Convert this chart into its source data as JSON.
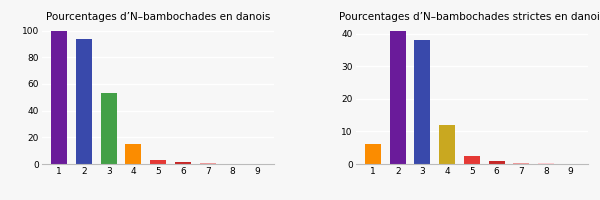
{
  "left": {
    "title": "Pourcentages d’N–bambochades en danois",
    "values": [
      100,
      94,
      53,
      15,
      3,
      1.5,
      0.5,
      0.3,
      0.15
    ],
    "colors": [
      "#6a1b9a",
      "#3949ab",
      "#43a047",
      "#fb8c00",
      "#e53935",
      "#c62828",
      "#ef9a9a",
      "#ffcdd2",
      "#ffebee"
    ],
    "ylim": [
      0,
      105
    ],
    "yticks": [
      0,
      20,
      40,
      60,
      80,
      100
    ]
  },
  "right": {
    "title": "Pourcentages d’N–bambochades strictes en danois",
    "values": [
      6.2,
      41,
      38,
      12,
      2.5,
      1.0,
      0.3,
      0.2,
      0.1
    ],
    "colors": [
      "#fb8c00",
      "#6a1b9a",
      "#3949ab",
      "#c9a820",
      "#e53935",
      "#c62828",
      "#ef9a9a",
      "#ffcdd2",
      "#ffebee"
    ],
    "ylim": [
      0,
      43
    ],
    "yticks": [
      0,
      10,
      20,
      30,
      40
    ]
  },
  "categories": [
    1,
    2,
    3,
    4,
    5,
    6,
    7,
    8,
    9
  ],
  "background_color": "#f7f7f7",
  "title_fontsize": 7.5,
  "tick_fontsize": 6.5
}
